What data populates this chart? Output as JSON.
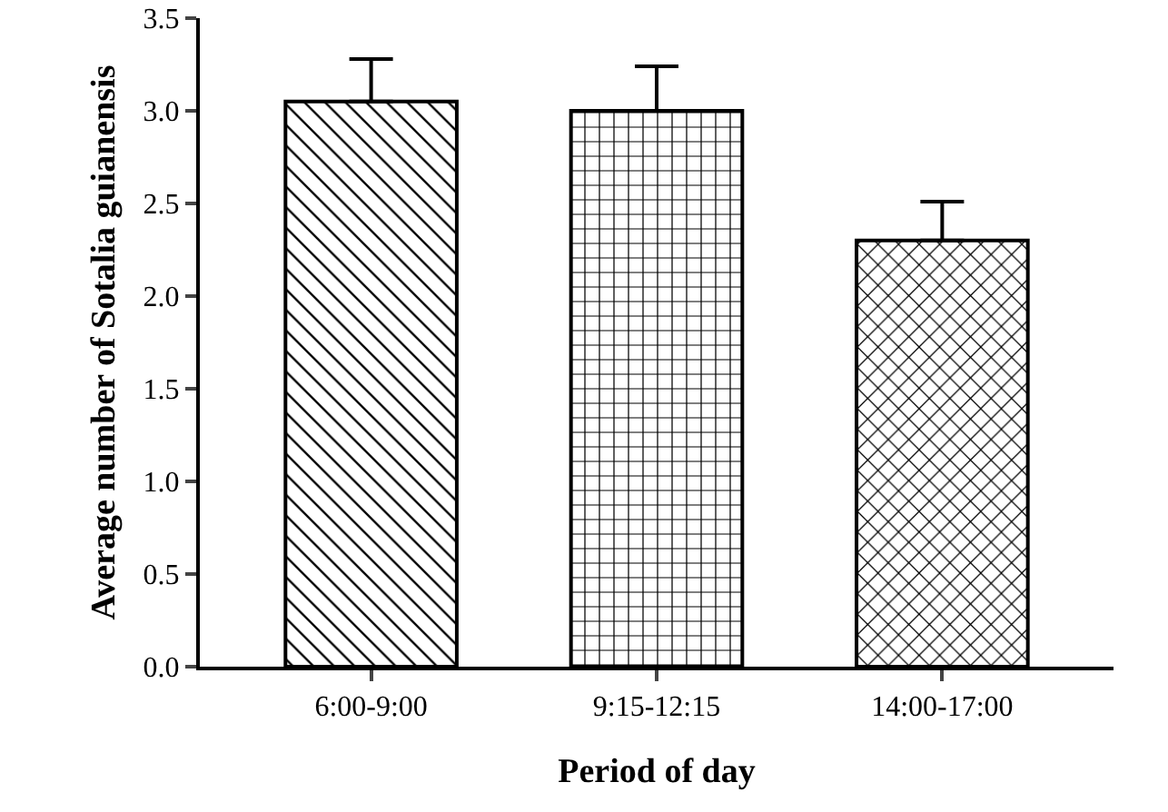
{
  "chart_data": {
    "type": "bar",
    "xlabel": "Period of day",
    "ylabel": "Average number of Sotalia guianensis",
    "categories": [
      "6:00-9:00",
      "9:15-12:15",
      "14:00-17:00"
    ],
    "values": [
      3.05,
      3.0,
      2.3
    ],
    "errors": [
      [
        3.05,
        3.28
      ],
      [
        3.0,
        3.24
      ],
      [
        2.3,
        2.51
      ]
    ],
    "color": "#000000",
    "ylim": [
      0,
      3.5
    ],
    "yticks": [
      {
        "value": 0,
        "label": "0.0"
      },
      {
        "value": 0.5,
        "label": "0.5"
      },
      {
        "value": 1,
        "label": "1.0"
      },
      {
        "value": 1.5,
        "label": "1.5"
      },
      {
        "value": 2,
        "label": "2.0"
      },
      {
        "value": 2.5,
        "label": "2.5"
      },
      {
        "value": 3,
        "label": "3.0"
      },
      {
        "value": 3.5,
        "label": "3.5"
      }
    ],
    "grid": false,
    "legend": false
  }
}
